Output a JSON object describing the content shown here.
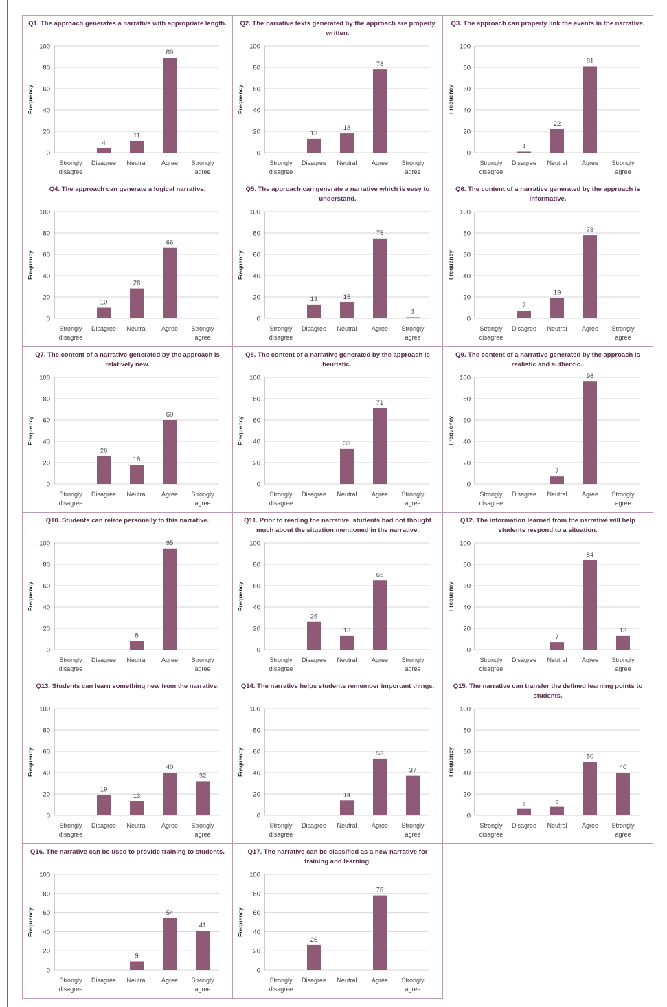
{
  "colors": {
    "bar": "#8e5a76",
    "grid": "#d6d6d6",
    "axis": "#9a9a9a",
    "panel_border": "#b99aae"
  },
  "ylabel": "Frequency",
  "categories": [
    [
      "Strongly",
      "disagree"
    ],
    [
      "Disagree"
    ],
    [
      "Neutral"
    ],
    [
      "Agree"
    ],
    [
      "Strongly",
      "agree"
    ]
  ],
  "chart_data": [
    {
      "type": "bar",
      "title": "Q1. The approach generates a narrative with appropriate length.",
      "ylabel": "Frequency",
      "ylim": [
        0,
        100
      ],
      "categories": [
        "Strongly disagree",
        "Disagree",
        "Neutral",
        "Agree",
        "Strongly agree"
      ],
      "values": [
        null,
        4,
        11,
        89,
        null
      ]
    },
    {
      "type": "bar",
      "title": "Q2. The narrative texts generated by the approach are properly written.",
      "ylabel": "Frequency",
      "ylim": [
        0,
        100
      ],
      "categories": [
        "Strongly disagree",
        "Disagree",
        "Neutral",
        "Agree",
        "Strongly agree"
      ],
      "values": [
        null,
        13,
        18,
        78,
        null
      ]
    },
    {
      "type": "bar",
      "title": "Q3. The approach can properly link the events in the narrative.",
      "ylabel": "Frequency",
      "ylim": [
        0,
        100
      ],
      "categories": [
        "Strongly disagree",
        "Disagree",
        "Neutral",
        "Agree",
        "Strongly agree"
      ],
      "values": [
        null,
        1,
        22,
        81,
        null
      ]
    },
    {
      "type": "bar",
      "title": "Q4. The approach can generate a logical narrative.",
      "ylabel": "Frequency",
      "ylim": [
        0,
        100
      ],
      "categories": [
        "Strongly disagree",
        "Disagree",
        "Neutral",
        "Agree",
        "Strongly agree"
      ],
      "values": [
        null,
        10,
        28,
        66,
        null
      ]
    },
    {
      "type": "bar",
      "title": "Q5. The approach can generate a narrative which is easy to understand.",
      "ylabel": "Frequency",
      "ylim": [
        0,
        100
      ],
      "categories": [
        "Strongly disagree",
        "Disagree",
        "Neutral",
        "Agree",
        "Strongly agree"
      ],
      "values": [
        null,
        13,
        15,
        75,
        1
      ]
    },
    {
      "type": "bar",
      "title": "Q6. The content of a narrative generated by the approach is informative.",
      "ylabel": "Frequency",
      "ylim": [
        0,
        100
      ],
      "categories": [
        "Strongly disagree",
        "Disagree",
        "Neutral",
        "Agree",
        "Strongly agree"
      ],
      "values": [
        null,
        7,
        19,
        78,
        null
      ]
    },
    {
      "type": "bar",
      "title": "Q7. The content of a narrative generated by the approach is relatively new.",
      "ylabel": "Frequency",
      "ylim": [
        0,
        100
      ],
      "categories": [
        "Strongly disagree",
        "Disagree",
        "Neutral",
        "Agree",
        "Strongly agree"
      ],
      "values": [
        null,
        26,
        18,
        60,
        null
      ]
    },
    {
      "type": "bar",
      "title": "Q8. The content of a narrative generated by the approach is heuristic..",
      "ylabel": "Frequency",
      "ylim": [
        0,
        100
      ],
      "categories": [
        "Strongly disagree",
        "Disagree",
        "Neutral",
        "Agree",
        "Strongly agree"
      ],
      "values": [
        null,
        null,
        33,
        71,
        null
      ]
    },
    {
      "type": "bar",
      "title": "Q9. The content of a narrative generated by the approach is realistic and authentic..",
      "ylabel": "Frequency",
      "ylim": [
        0,
        100
      ],
      "categories": [
        "Strongly disagree",
        "Disagree",
        "Neutral",
        "Agree",
        "Strongly agree"
      ],
      "values": [
        null,
        null,
        7,
        96,
        null
      ]
    },
    {
      "type": "bar",
      "title": "Q10. Students can relate personally to this narrative.",
      "ylabel": "Frequency",
      "ylim": [
        0,
        100
      ],
      "categories": [
        "Strongly disagree",
        "Disagree",
        "Neutral",
        "Agree",
        "Strongly agree"
      ],
      "values": [
        null,
        null,
        8,
        95,
        null
      ]
    },
    {
      "type": "bar",
      "title": "Q11. Prior to reading the narrative, students had not thought much about the situation mentioned in the narrative.",
      "ylabel": "Frequency",
      "ylim": [
        0,
        100
      ],
      "categories": [
        "Strongly disagree",
        "Disagree",
        "Neutral",
        "Agree",
        "Strongly agree"
      ],
      "values": [
        null,
        26,
        13,
        65,
        null
      ]
    },
    {
      "type": "bar",
      "title": "Q12. The information learned from the narrative will help students respond to a situation.",
      "ylabel": "Frequency",
      "ylim": [
        0,
        100
      ],
      "categories": [
        "Strongly disagree",
        "Disagree",
        "Neutral",
        "Agree",
        "Strongly agree"
      ],
      "values": [
        null,
        null,
        7,
        84,
        13
      ]
    },
    {
      "type": "bar",
      "title": "Q13. Students can learn something new from the narrative.",
      "ylabel": "Frequency",
      "ylim": [
        0,
        100
      ],
      "categories": [
        "Strongly disagree",
        "Disagree",
        "Neutral",
        "Agree",
        "Strongly agree"
      ],
      "values": [
        null,
        19,
        13,
        40,
        32
      ]
    },
    {
      "type": "bar",
      "title": "Q14. The narrative helps students remember important things.",
      "ylabel": "Frequency",
      "ylim": [
        0,
        100
      ],
      "categories": [
        "Strongly disagree",
        "Disagree",
        "Neutral",
        "Agree",
        "Strongly agree"
      ],
      "values": [
        null,
        null,
        14,
        53,
        37
      ]
    },
    {
      "type": "bar",
      "title": "Q15. The narrative can transfer the defined learning points to students.",
      "ylabel": "Frequency",
      "ylim": [
        0,
        100
      ],
      "categories": [
        "Strongly disagree",
        "Disagree",
        "Neutral",
        "Agree",
        "Strongly agree"
      ],
      "values": [
        null,
        6,
        8,
        50,
        40
      ]
    },
    {
      "type": "bar",
      "title": "Q16. The narrative can be used to provide training to students.",
      "ylabel": "Frequency",
      "ylim": [
        0,
        100
      ],
      "categories": [
        "Strongly disagree",
        "Disagree",
        "Neutral",
        "Agree",
        "Strongly agree"
      ],
      "values": [
        null,
        null,
        9,
        54,
        41
      ]
    },
    {
      "type": "bar",
      "title": "Q17. The narrative can be classified as a new narrative for training and learning.",
      "ylabel": "Frequency",
      "ylim": [
        0,
        100
      ],
      "categories": [
        "Strongly disagree",
        "Disagree",
        "Neutral",
        "Agree",
        "Strongly agree"
      ],
      "values": [
        null,
        26,
        null,
        78,
        null
      ]
    }
  ]
}
